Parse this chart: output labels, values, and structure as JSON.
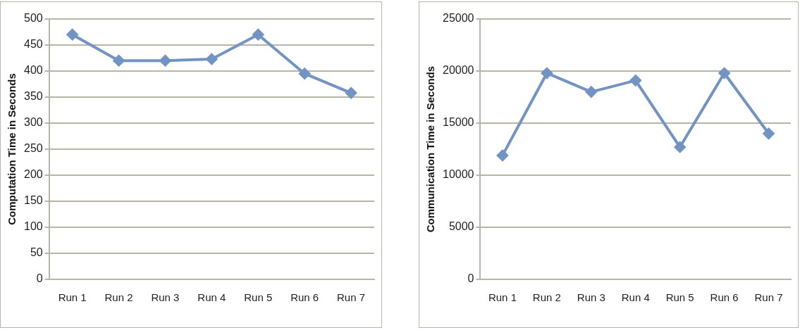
{
  "chart_data": [
    {
      "type": "line",
      "ylabel": "Computation Time in Seconds",
      "categories": [
        "Run 1",
        "Run 2",
        "Run 3",
        "Run 4",
        "Run 5",
        "Run 6",
        "Run 7"
      ],
      "series": [
        {
          "color": "#7194c4",
          "values": [
            470,
            420,
            420,
            423,
            470,
            395,
            358
          ]
        }
      ],
      "ylim": [
        0,
        500
      ],
      "yticks": [
        0,
        50,
        100,
        150,
        200,
        250,
        300,
        350,
        400,
        450,
        500
      ],
      "grid": "y",
      "marker": "diamond"
    },
    {
      "type": "line",
      "ylabel": "Communication Time in Seconds",
      "categories": [
        "Run 1",
        "Run 2",
        "Run 3",
        "Run 4",
        "Run 5",
        "Run 6",
        "Run 7"
      ],
      "series": [
        {
          "color": "#7194c4",
          "values": [
            11900,
            19800,
            18000,
            19100,
            12700,
            19800,
            14000
          ]
        }
      ],
      "ylim": [
        0,
        25000
      ],
      "yticks": [
        0,
        5000,
        10000,
        15000,
        20000,
        25000
      ],
      "grid": "y",
      "marker": "diamond"
    }
  ]
}
